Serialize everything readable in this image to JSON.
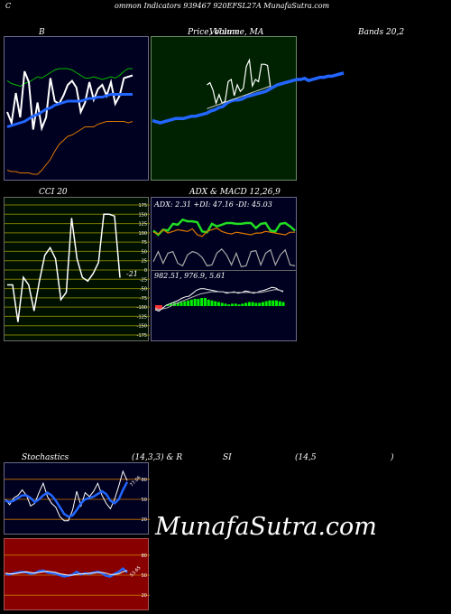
{
  "header": {
    "title": "ommon Indicators 939467 920EFSL27A MunafaSutra.com",
    "corner": "C"
  },
  "labels": {
    "bollinger_left": "B",
    "price_title": "Price, Volume, MA",
    "price_overlap": "Volume",
    "bollinger_right": "Bands 20,2",
    "cci": "CCI 20",
    "adx_macd": "ADX  & MACD 12,26,9",
    "adx_line": "ADX: 2.31  +DI: 47.16  -DI: 45.03",
    "macd_line": "982.51,  976.9,  5.61",
    "cci_value": "-21",
    "stoch_a": "Stochastics",
    "stoch_b": "(14,3,3) & R",
    "stoch_c": "SI",
    "stoch_d": "(14,5",
    "stoch_e": ")",
    "stoch_value": "77.06",
    "rsi_value": "53.65",
    "watermark": "MunafaSutra.com"
  },
  "colors": {
    "bollinger_bg": "#000020",
    "price_bg": "#002200",
    "cci_bg": "#001000",
    "adx_bg": "#000020",
    "stoch_bg": "#000020",
    "rsi_bg": "#880000",
    "blue": "#2266ff",
    "white": "#ffffff",
    "orange": "#dd7700",
    "green": "#00cc00"
  },
  "chart_data": [
    {
      "type": "line",
      "name": "bollinger",
      "series": [
        {
          "name": "upper",
          "color": "#00bb00",
          "values": [
            71,
            69,
            68,
            67,
            69,
            70,
            72,
            74,
            73,
            75,
            77,
            79,
            80,
            80,
            80,
            79,
            77,
            75,
            73,
            73,
            74,
            73,
            72,
            73,
            74,
            73,
            75,
            78,
            80,
            80
          ]
        },
        {
          "name": "price",
          "color": "#ffffff",
          "values": [
            48,
            40,
            62,
            44,
            78,
            70,
            35,
            55,
            36,
            44,
            73,
            56,
            54,
            60,
            68,
            71,
            66,
            48,
            55,
            70,
            57,
            65,
            68,
            60,
            70,
            54,
            60,
            73,
            74,
            75
          ]
        },
        {
          "name": "mid",
          "color": "#2266ff",
          "values": [
            37,
            38,
            39,
            40,
            41,
            43,
            45,
            46,
            48,
            50,
            51,
            53,
            54,
            55,
            56,
            56,
            56,
            56,
            57,
            58,
            58,
            59,
            59,
            60,
            61,
            61,
            61,
            61,
            61,
            61
          ]
        },
        {
          "name": "lower",
          "color": "#dd7700",
          "values": [
            5,
            4,
            4,
            3,
            3,
            3,
            2,
            2,
            5,
            9,
            13,
            19,
            24,
            27,
            30,
            31,
            33,
            35,
            37,
            37,
            37,
            39,
            40,
            41,
            41,
            41,
            41,
            41,
            40,
            41
          ]
        }
      ]
    },
    {
      "type": "line",
      "name": "price-ma",
      "series": [
        {
          "name": "price",
          "color": "#ffffff",
          "values": [
            null,
            null,
            null,
            null,
            null,
            null,
            null,
            null,
            null,
            null,
            null,
            null,
            null,
            null,
            null,
            null,
            null,
            null,
            55,
            57,
            50,
            38,
            46,
            38,
            40,
            58,
            60,
            45,
            55,
            49,
            52,
            72,
            78,
            54,
            60,
            58,
            74,
            74,
            73,
            52
          ]
        },
        {
          "name": "ma-short",
          "color": "#2266ff",
          "values": [
            22,
            21,
            20,
            21,
            22,
            23,
            24,
            24,
            24,
            25,
            26,
            26,
            27,
            28,
            29,
            31,
            32,
            34,
            35,
            38,
            40,
            41,
            41,
            42,
            44,
            45,
            46,
            47,
            48,
            49,
            51,
            53,
            55,
            56,
            57,
            58,
            59,
            60,
            60,
            61,
            59,
            60,
            61,
            62,
            62,
            63,
            63,
            64,
            65,
            66
          ]
        },
        {
          "name": "ma-long",
          "color": "#cccccc",
          "values": [
            null,
            null,
            null,
            null,
            null,
            null,
            null,
            null,
            null,
            null,
            null,
            null,
            null,
            null,
            null,
            null,
            null,
            null,
            33,
            34,
            35,
            36,
            37,
            38,
            39,
            40,
            41,
            42,
            43,
            44,
            45,
            46,
            47,
            48,
            49,
            50,
            51,
            52,
            53,
            54
          ]
        }
      ]
    },
    {
      "type": "line",
      "name": "cci",
      "ylim": [
        -175,
        175
      ],
      "ticks": [
        175,
        150,
        125,
        100,
        75,
        50,
        25,
        0,
        -25,
        -50,
        -75,
        -100,
        -125,
        -150,
        -175
      ],
      "series": [
        {
          "name": "cci",
          "color": "#ffffff",
          "values": [
            -40,
            -40,
            -140,
            -20,
            -40,
            -110,
            -30,
            40,
            60,
            30,
            -80,
            -60,
            140,
            30,
            -20,
            -30,
            -10,
            20,
            150,
            150,
            145,
            -21
          ]
        }
      ]
    },
    {
      "type": "line",
      "name": "adx",
      "series": [
        {
          "name": "+DI",
          "color": "#22dd22",
          "values": [
            47,
            42,
            48,
            47,
            55,
            54,
            60,
            58,
            58,
            57,
            46,
            45,
            55,
            52,
            54,
            56,
            56,
            55,
            55,
            56,
            56,
            50,
            55,
            56,
            47,
            46,
            55,
            56,
            52,
            47
          ]
        },
        {
          "name": "-DI",
          "color": "#dd7700",
          "values": [
            45,
            43,
            48,
            44,
            46,
            48,
            47,
            46,
            49,
            42,
            40,
            46,
            48,
            50,
            46,
            44,
            43,
            45,
            44,
            43,
            42,
            44,
            44,
            46,
            45,
            44,
            43,
            42,
            45,
            45
          ]
        },
        {
          "name": "ADX",
          "color": "#aaaaaa",
          "values": [
            10,
            22,
            8,
            20,
            22,
            8,
            5,
            18,
            22,
            20,
            15,
            5,
            6,
            20,
            25,
            18,
            6,
            20,
            4,
            5,
            22,
            23,
            6,
            20,
            24,
            6,
            18,
            24,
            6,
            5
          ]
        }
      ]
    },
    {
      "type": "line",
      "name": "macd",
      "series": [
        {
          "name": "macd",
          "color": "#ffffff",
          "values": [
            20,
            18,
            22,
            26,
            28,
            30,
            32,
            35,
            37,
            38,
            42,
            46,
            48,
            48,
            47,
            46,
            45,
            44,
            44,
            42,
            43,
            44,
            42,
            43,
            45,
            44,
            42,
            43,
            45,
            46,
            48,
            50,
            49,
            46,
            44
          ]
        },
        {
          "name": "signal",
          "color": "#bbbbbb",
          "values": [
            22,
            20,
            21,
            22,
            24,
            27,
            29,
            31,
            33,
            35,
            37,
            39,
            41,
            42,
            43,
            44,
            44,
            44,
            44,
            43,
            43,
            43,
            43,
            43,
            43,
            43,
            43,
            43,
            43,
            44,
            45,
            46,
            47,
            46,
            45
          ]
        },
        {
          "name": "histogram",
          "color": "#00ee00",
          "values": [
            2,
            3,
            4,
            4,
            5,
            6,
            7,
            8,
            9,
            9,
            10,
            10,
            8,
            7,
            6,
            5,
            4,
            3,
            2,
            3,
            3,
            2,
            3,
            4,
            5,
            5,
            4,
            4,
            5,
            6,
            7,
            7,
            7,
            6,
            5
          ]
        }
      ]
    },
    {
      "type": "line",
      "name": "stochastics",
      "ticks": [
        80,
        50,
        20
      ],
      "series": [
        {
          "name": "k",
          "color": "#ffffff",
          "values": [
            50,
            42,
            52,
            56,
            64,
            56,
            40,
            44,
            60,
            74,
            54,
            44,
            38,
            24,
            18,
            18,
            34,
            62,
            40,
            60,
            54,
            62,
            74,
            56,
            44,
            36,
            50,
            70,
            92,
            78
          ]
        },
        {
          "name": "d",
          "color": "#2266ff",
          "values": [
            48,
            46,
            48,
            52,
            56,
            56,
            52,
            46,
            50,
            56,
            60,
            56,
            48,
            38,
            28,
            24,
            26,
            34,
            44,
            50,
            52,
            54,
            58,
            62,
            58,
            48,
            44,
            50,
            64,
            76
          ]
        }
      ]
    },
    {
      "type": "line",
      "name": "rsi",
      "ticks": [
        80,
        50,
        20
      ],
      "series": [
        {
          "name": "rsi",
          "color": "#2266ff",
          "values": [
            52,
            51,
            53,
            54,
            55,
            54,
            52,
            53,
            56,
            57,
            54,
            53,
            52,
            50,
            48,
            49,
            51,
            55,
            51,
            53,
            52,
            54,
            55,
            53,
            49,
            48,
            52,
            55,
            60,
            54
          ]
        },
        {
          "name": "ma",
          "color": "#ffffff",
          "values": [
            53,
            52,
            52,
            53,
            54,
            55,
            54,
            53,
            54,
            55,
            56,
            55,
            54,
            52,
            51,
            50,
            50,
            51,
            52,
            52,
            53,
            53,
            54,
            54,
            53,
            51,
            51,
            52,
            55,
            57
          ]
        }
      ]
    }
  ]
}
